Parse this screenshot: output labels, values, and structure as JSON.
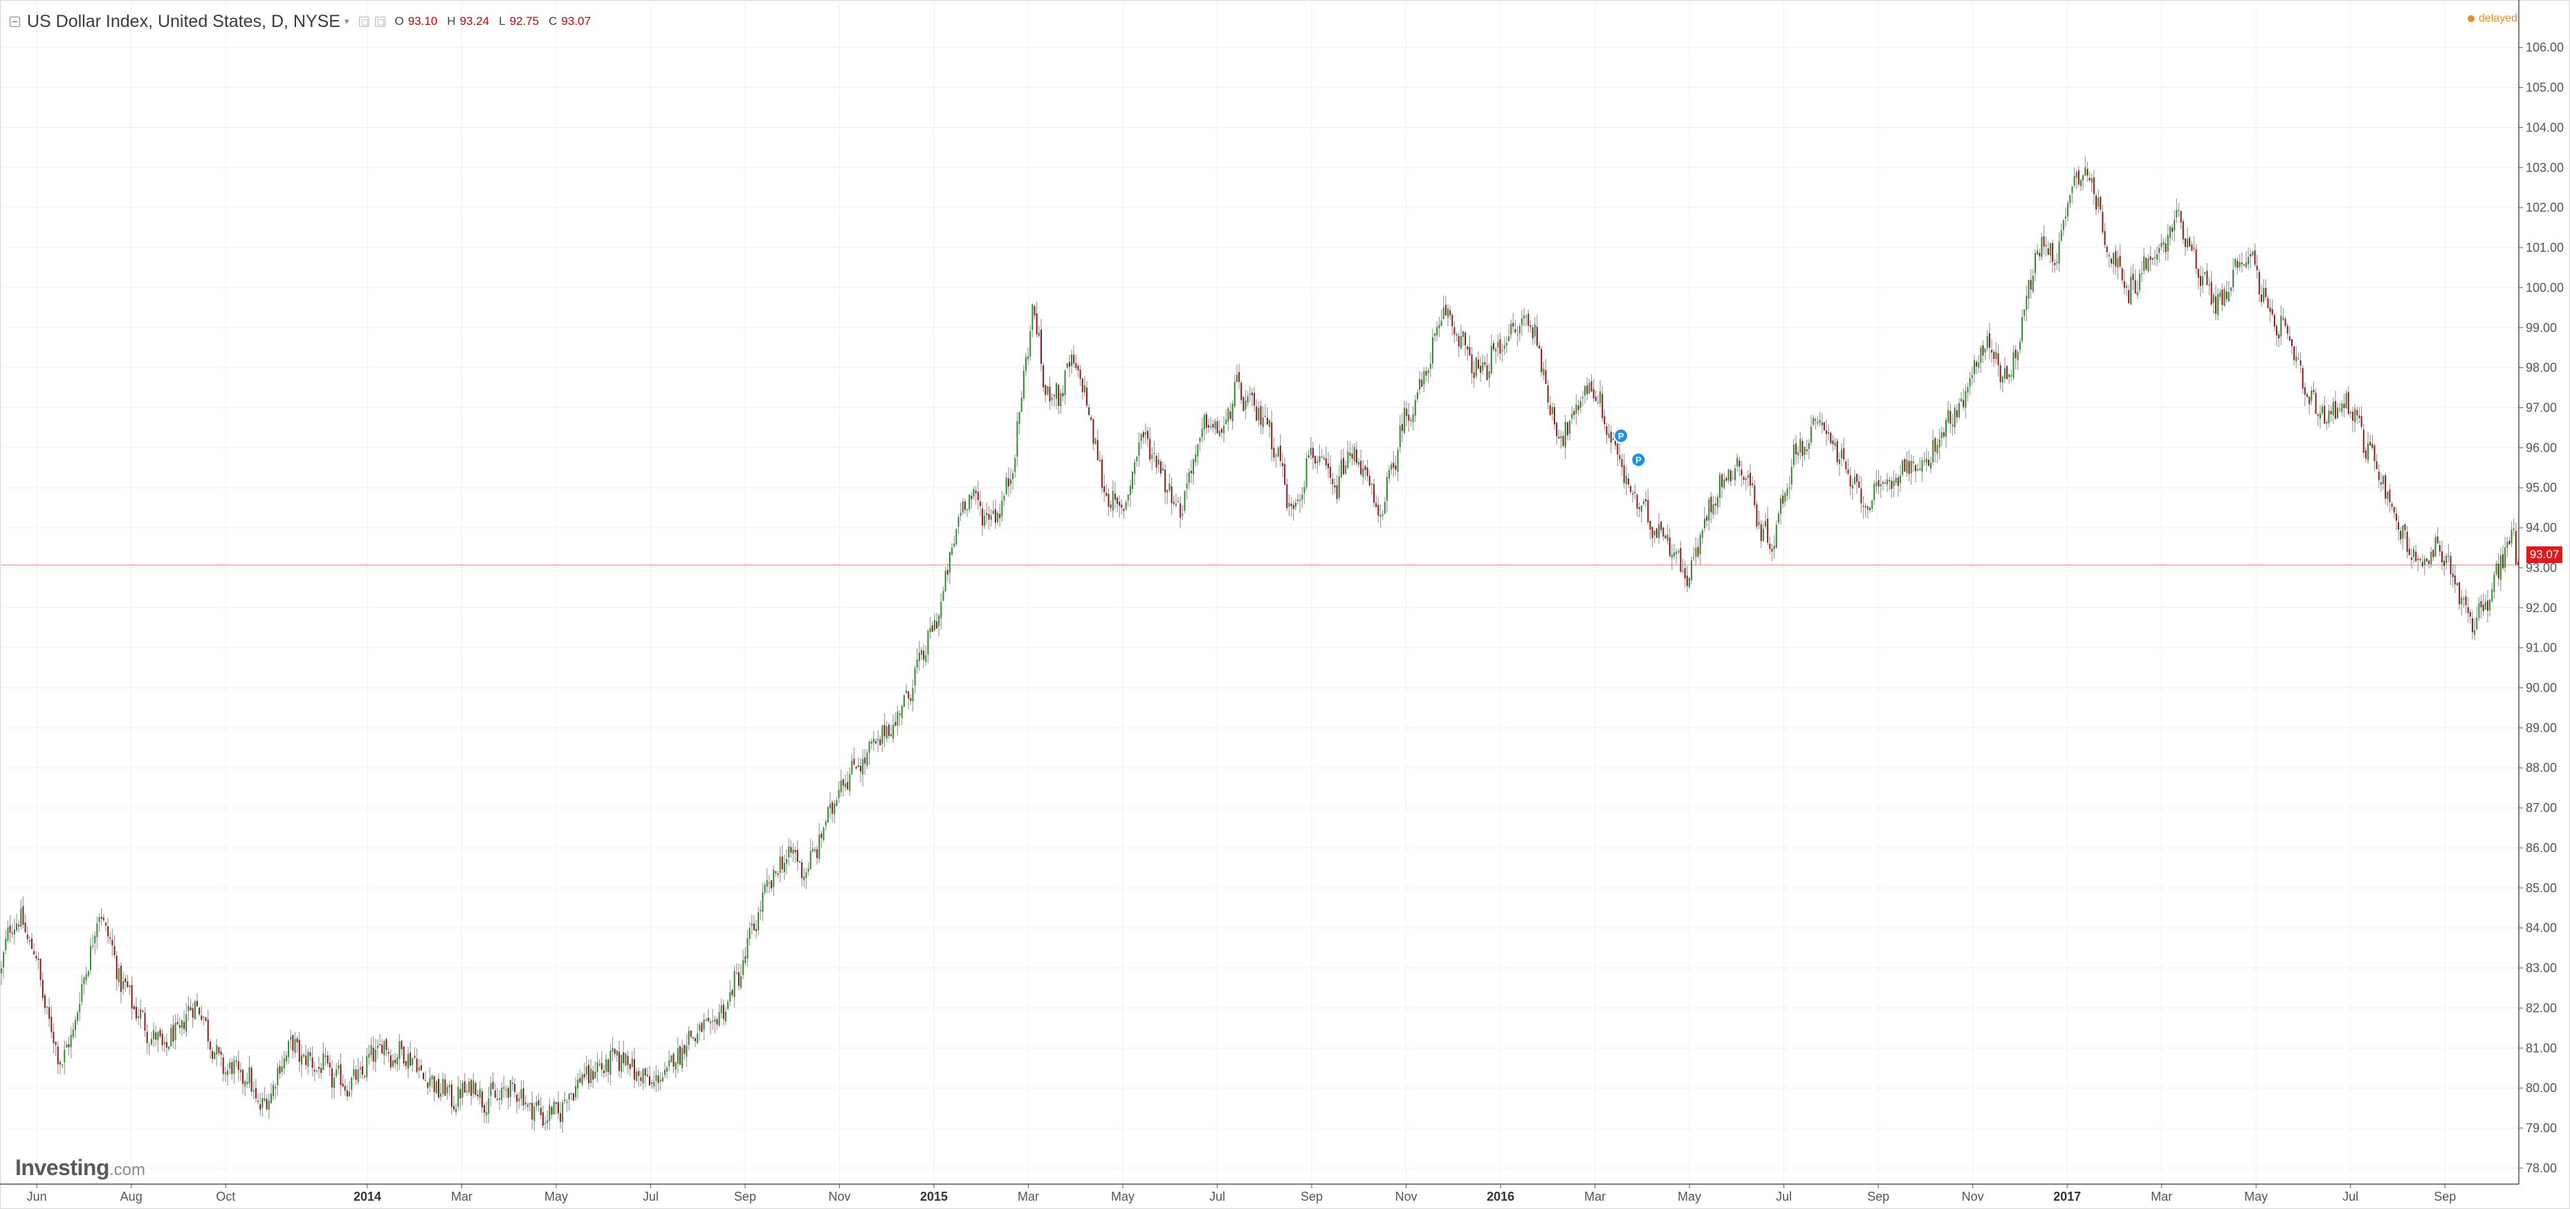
{
  "legend": {
    "title": "US Dollar Index, United States, D, NYSE",
    "ohlc": [
      {
        "label": "O",
        "value": "93.10"
      },
      {
        "label": "H",
        "value": "93.24"
      },
      {
        "label": "L",
        "value": "92.75"
      },
      {
        "label": "C",
        "value": "93.07"
      }
    ]
  },
  "status": {
    "delayed_label": "delayed"
  },
  "price_tag": "93.07",
  "logo": {
    "main": "Investing",
    "suffix": ".com"
  },
  "colors": {
    "up": "#2e8b2e",
    "down": "#8b1a1a",
    "wick": "#9a9a9a",
    "grid": "#f0f0f0",
    "last_line": "#f0a898",
    "price_tag": "#e8151b",
    "delayed": "#f08a24"
  },
  "chart_data": {
    "type": "candlestick",
    "ylim": [
      77.6,
      106.6
    ],
    "y_ticks": [
      "78.00",
      "79.00",
      "80.00",
      "81.00",
      "82.00",
      "83.00",
      "84.00",
      "85.00",
      "86.00",
      "87.00",
      "88.00",
      "89.00",
      "90.00",
      "91.00",
      "92.00",
      "93.00",
      "94.00",
      "95.00",
      "96.00",
      "97.00",
      "98.00",
      "99.00",
      "100.00",
      "101.00",
      "102.00",
      "103.00",
      "104.00",
      "105.00",
      "106.00"
    ],
    "x_labels": [
      {
        "text": "Jun",
        "t": 0.0,
        "bold": false
      },
      {
        "text": "Aug",
        "t": 2.0,
        "bold": false
      },
      {
        "text": "Oct",
        "t": 4.0,
        "bold": false
      },
      {
        "text": "2014",
        "t": 7.0,
        "bold": true
      },
      {
        "text": "Mar",
        "t": 9.0,
        "bold": false
      },
      {
        "text": "May",
        "t": 11.0,
        "bold": false
      },
      {
        "text": "Jul",
        "t": 13.0,
        "bold": false
      },
      {
        "text": "Sep",
        "t": 15.0,
        "bold": false
      },
      {
        "text": "Nov",
        "t": 17.0,
        "bold": false
      },
      {
        "text": "2015",
        "t": 19.0,
        "bold": true
      },
      {
        "text": "Mar",
        "t": 21.0,
        "bold": false
      },
      {
        "text": "May",
        "t": 23.0,
        "bold": false
      },
      {
        "text": "Jul",
        "t": 25.0,
        "bold": false
      },
      {
        "text": "Sep",
        "t": 27.0,
        "bold": false
      },
      {
        "text": "Nov",
        "t": 29.0,
        "bold": false
      },
      {
        "text": "2016",
        "t": 31.0,
        "bold": true
      },
      {
        "text": "Mar",
        "t": 33.0,
        "bold": false
      },
      {
        "text": "May",
        "t": 35.0,
        "bold": false
      },
      {
        "text": "Jul",
        "t": 37.0,
        "bold": false
      },
      {
        "text": "Sep",
        "t": 39.0,
        "bold": false
      },
      {
        "text": "Nov",
        "t": 41.0,
        "bold": false
      },
      {
        "text": "2017",
        "t": 43.0,
        "bold": true
      },
      {
        "text": "Mar",
        "t": 45.0,
        "bold": false
      },
      {
        "text": "May",
        "t": 47.0,
        "bold": false
      },
      {
        "text": "Jul",
        "t": 49.0,
        "bold": false
      },
      {
        "text": "Sep",
        "t": 51.0,
        "bold": false
      }
    ],
    "x_range_months": [
      -0.75,
      52.55
    ],
    "trend": [
      [
        -0.75,
        82.9
      ],
      [
        -0.55,
        84.2
      ],
      [
        -0.3,
        84.1
      ],
      [
        0.0,
        83.2
      ],
      [
        0.25,
        81.6
      ],
      [
        0.55,
        80.6
      ],
      [
        0.8,
        81.6
      ],
      [
        1.1,
        83.3
      ],
      [
        1.35,
        84.5
      ],
      [
        1.55,
        83.6
      ],
      [
        1.8,
        82.6
      ],
      [
        2.05,
        82.1
      ],
      [
        2.35,
        81.4
      ],
      [
        2.7,
        81.0
      ],
      [
        3.05,
        81.5
      ],
      [
        3.35,
        82.2
      ],
      [
        3.6,
        81.5
      ],
      [
        3.85,
        80.6
      ],
      [
        4.2,
        80.4
      ],
      [
        4.5,
        80.2
      ],
      [
        4.75,
        79.4
      ],
      [
        5.05,
        80.2
      ],
      [
        5.35,
        81.1
      ],
      [
        5.7,
        80.7
      ],
      [
        6.05,
        80.5
      ],
      [
        6.35,
        80.2
      ],
      [
        6.7,
        80.1
      ],
      [
        7.0,
        80.6
      ],
      [
        7.3,
        81.1
      ],
      [
        7.55,
        80.8
      ],
      [
        7.85,
        80.9
      ],
      [
        8.2,
        80.3
      ],
      [
        8.5,
        80.0
      ],
      [
        8.9,
        79.7
      ],
      [
        9.2,
        80.1
      ],
      [
        9.5,
        79.7
      ],
      [
        9.8,
        79.8
      ],
      [
        10.1,
        80.0
      ],
      [
        10.4,
        79.6
      ],
      [
        10.75,
        79.3
      ],
      [
        11.05,
        79.4
      ],
      [
        11.4,
        80.1
      ],
      [
        11.75,
        80.4
      ],
      [
        12.1,
        80.6
      ],
      [
        12.45,
        80.8
      ],
      [
        12.75,
        80.3
      ],
      [
        13.1,
        80.1
      ],
      [
        13.4,
        80.5
      ],
      [
        13.7,
        81.1
      ],
      [
        14.0,
        81.4
      ],
      [
        14.3,
        81.5
      ],
      [
        14.6,
        82.1
      ],
      [
        14.9,
        82.9
      ],
      [
        15.25,
        84.3
      ],
      [
        15.6,
        85.3
      ],
      [
        15.95,
        85.9
      ],
      [
        16.3,
        85.4
      ],
      [
        16.65,
        86.4
      ],
      [
        17.0,
        87.6
      ],
      [
        17.3,
        88.0
      ],
      [
        17.6,
        88.3
      ],
      [
        17.9,
        88.8
      ],
      [
        18.2,
        89.2
      ],
      [
        18.5,
        90.0
      ],
      [
        18.75,
        90.8
      ],
      [
        19.0,
        91.5
      ],
      [
        19.25,
        92.6
      ],
      [
        19.5,
        94.2
      ],
      [
        19.75,
        94.9
      ],
      [
        20.0,
        94.4
      ],
      [
        20.3,
        94.3
      ],
      [
        20.6,
        95.1
      ],
      [
        20.85,
        97.2
      ],
      [
        21.1,
        99.6
      ],
      [
        21.35,
        97.4
      ],
      [
        21.65,
        97.3
      ],
      [
        21.95,
        98.2
      ],
      [
        22.25,
        97.1
      ],
      [
        22.55,
        95.2
      ],
      [
        22.85,
        94.4
      ],
      [
        23.1,
        94.7
      ],
      [
        23.35,
        96.3
      ],
      [
        23.6,
        96.0
      ],
      [
        23.9,
        95.2
      ],
      [
        24.2,
        94.4
      ],
      [
        24.5,
        95.7
      ],
      [
        24.8,
        96.7
      ],
      [
        25.1,
        96.3
      ],
      [
        25.4,
        97.5
      ],
      [
        25.7,
        97.0
      ],
      [
        26.0,
        96.8
      ],
      [
        26.3,
        95.8
      ],
      [
        26.55,
        94.4
      ],
      [
        26.75,
        94.9
      ],
      [
        26.95,
        95.9
      ],
      [
        27.2,
        95.6
      ],
      [
        27.5,
        94.9
      ],
      [
        27.8,
        95.9
      ],
      [
        28.1,
        95.5
      ],
      [
        28.4,
        94.2
      ],
      [
        28.7,
        95.4
      ],
      [
        28.95,
        96.7
      ],
      [
        29.25,
        97.3
      ],
      [
        29.55,
        98.4
      ],
      [
        29.8,
        99.4
      ],
      [
        30.05,
        99.0
      ],
      [
        30.3,
        98.3
      ],
      [
        30.55,
        97.8
      ],
      [
        30.8,
        98.2
      ],
      [
        31.05,
        98.7
      ],
      [
        31.3,
        98.9
      ],
      [
        31.55,
        99.2
      ],
      [
        31.75,
        98.9
      ],
      [
        31.95,
        97.5
      ],
      [
        32.2,
        96.4
      ],
      [
        32.45,
        96.4
      ],
      [
        32.7,
        97.3
      ],
      [
        32.95,
        97.6
      ],
      [
        33.2,
        96.7
      ],
      [
        33.45,
        95.9
      ],
      [
        33.7,
        95.0
      ],
      [
        33.95,
        94.5
      ],
      [
        34.2,
        94.1
      ],
      [
        34.45,
        93.9
      ],
      [
        34.7,
        93.4
      ],
      [
        34.95,
        92.7
      ],
      [
        35.2,
        93.6
      ],
      [
        35.5,
        94.8
      ],
      [
        35.75,
        95.2
      ],
      [
        36.0,
        95.6
      ],
      [
        36.25,
        95.2
      ],
      [
        36.5,
        94.0
      ],
      [
        36.75,
        93.6
      ],
      [
        37.0,
        94.8
      ],
      [
        37.25,
        96.0
      ],
      [
        37.5,
        96.1
      ],
      [
        37.75,
        96.7
      ],
      [
        38.0,
        96.3
      ],
      [
        38.25,
        95.5
      ],
      [
        38.5,
        95.0
      ],
      [
        38.75,
        94.6
      ],
      [
        39.0,
        94.9
      ],
      [
        39.3,
        95.2
      ],
      [
        39.6,
        95.6
      ],
      [
        39.9,
        95.4
      ],
      [
        40.2,
        96.0
      ],
      [
        40.5,
        96.7
      ],
      [
        40.8,
        97.0
      ],
      [
        41.05,
        98.1
      ],
      [
        41.3,
        98.7
      ],
      [
        41.55,
        98.0
      ],
      [
        41.8,
        97.8
      ],
      [
        42.05,
        99.2
      ],
      [
        42.3,
        100.6
      ],
      [
        42.55,
        101.2
      ],
      [
        42.75,
        100.6
      ],
      [
        42.95,
        101.8
      ],
      [
        43.15,
        102.8
      ],
      [
        43.35,
        103.0
      ],
      [
        43.55,
        102.5
      ],
      [
        43.8,
        101.3
      ],
      [
        44.05,
        100.5
      ],
      [
        44.3,
        99.8
      ],
      [
        44.55,
        100.4
      ],
      [
        44.8,
        100.7
      ],
      [
        45.05,
        101.0
      ],
      [
        45.3,
        101.8
      ],
      [
        45.55,
        101.3
      ],
      [
        45.8,
        100.4
      ],
      [
        46.05,
        99.8
      ],
      [
        46.3,
        99.6
      ],
      [
        46.55,
        100.5
      ],
      [
        46.8,
        100.9
      ],
      [
        47.05,
        100.3
      ],
      [
        47.3,
        99.1
      ],
      [
        47.55,
        99.0
      ],
      [
        47.8,
        98.3
      ],
      [
        48.05,
        97.3
      ],
      [
        48.3,
        96.9
      ],
      [
        48.55,
        96.8
      ],
      [
        48.8,
        97.2
      ],
      [
        49.05,
        97.0
      ],
      [
        49.3,
        96.1
      ],
      [
        49.55,
        95.6
      ],
      [
        49.8,
        94.8
      ],
      [
        50.05,
        93.9
      ],
      [
        50.3,
        93.4
      ],
      [
        50.55,
        93.0
      ],
      [
        50.8,
        93.4
      ],
      [
        51.05,
        93.2
      ],
      [
        51.3,
        92.4
      ],
      [
        51.55,
        91.7
      ],
      [
        51.8,
        91.9
      ],
      [
        52.05,
        92.6
      ],
      [
        52.25,
        93.4
      ],
      [
        52.45,
        93.8
      ],
      [
        52.55,
        93.07
      ]
    ],
    "last_close": 93.07,
    "markers": [
      {
        "label": "P",
        "t": 33.55,
        "value": 96.3
      },
      {
        "label": "P",
        "t": 33.92,
        "value": 95.7
      }
    ]
  }
}
